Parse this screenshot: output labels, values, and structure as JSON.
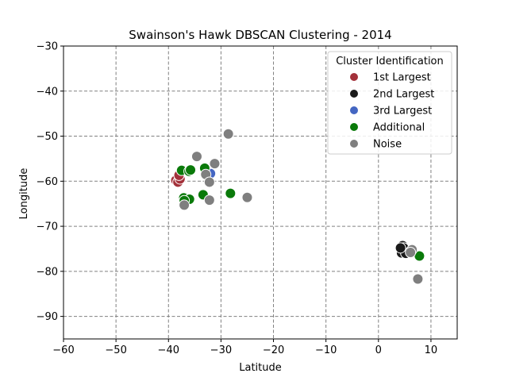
{
  "chart_data": {
    "type": "scatter",
    "title": "Swainson's Hawk DBSCAN Clustering - 2014",
    "xlabel": "Latitude",
    "ylabel": "Longitude",
    "xlim": [
      -60,
      15
    ],
    "ylim": [
      -95,
      -30
    ],
    "xticks": [
      -60,
      -50,
      -40,
      -30,
      -20,
      -10,
      0,
      10
    ],
    "yticks": [
      -90,
      -80,
      -70,
      -60,
      -50,
      -40,
      -30
    ],
    "xtick_labels": [
      "−60",
      "−50",
      "−40",
      "−30",
      "−20",
      "−10",
      "0",
      "10"
    ],
    "ytick_labels": [
      "−90",
      "−80",
      "−70",
      "−60",
      "−50",
      "−40",
      "−30"
    ],
    "grid": true,
    "legend": {
      "title": "Cluster Identification",
      "placement": "top-right"
    },
    "series": [
      {
        "name": "1st Largest",
        "color": "#a3313a",
        "points": [
          [
            -38.6,
            -59.8
          ],
          [
            -38.2,
            -60.2
          ],
          [
            -37.8,
            -59.5
          ],
          [
            -38.0,
            -58.7
          ]
        ]
      },
      {
        "name": "2nd Largest",
        "color": "#1a1a1a",
        "points": [
          [
            4.3,
            -75.5
          ],
          [
            4.6,
            -74.3
          ],
          [
            4.4,
            -75.9
          ],
          [
            5.0,
            -75.0
          ],
          [
            5.6,
            -75.6
          ],
          [
            4.8,
            -74.8
          ],
          [
            5.2,
            -76.0
          ],
          [
            4.2,
            -74.8
          ]
        ]
      },
      {
        "name": "3rd Largest",
        "color": "#4466c2",
        "points": [
          [
            -32.0,
            -58.3
          ]
        ]
      },
      {
        "name": "Additional",
        "color": "#0a7a0a",
        "points": [
          [
            -37.5,
            -57.6
          ],
          [
            -36.1,
            -57.8
          ],
          [
            -35.8,
            -57.5
          ],
          [
            -33.1,
            -57.1
          ],
          [
            -37.1,
            -63.7
          ],
          [
            -36.0,
            -64.0
          ],
          [
            -37.0,
            -64.3
          ],
          [
            -33.4,
            -63.0
          ],
          [
            -28.2,
            -62.7
          ],
          [
            7.8,
            -76.6
          ]
        ]
      },
      {
        "name": "Noise",
        "color": "#7f7f7f",
        "points": [
          [
            -28.6,
            -49.5
          ],
          [
            -34.6,
            -54.5
          ],
          [
            -31.2,
            -56.1
          ],
          [
            -32.9,
            -58.5
          ],
          [
            -32.2,
            -60.2
          ],
          [
            -37.0,
            -65.3
          ],
          [
            -32.2,
            -64.2
          ],
          [
            -25.0,
            -63.6
          ],
          [
            6.4,
            -75.2
          ],
          [
            6.1,
            -75.8
          ],
          [
            7.5,
            -81.7
          ]
        ]
      }
    ]
  }
}
